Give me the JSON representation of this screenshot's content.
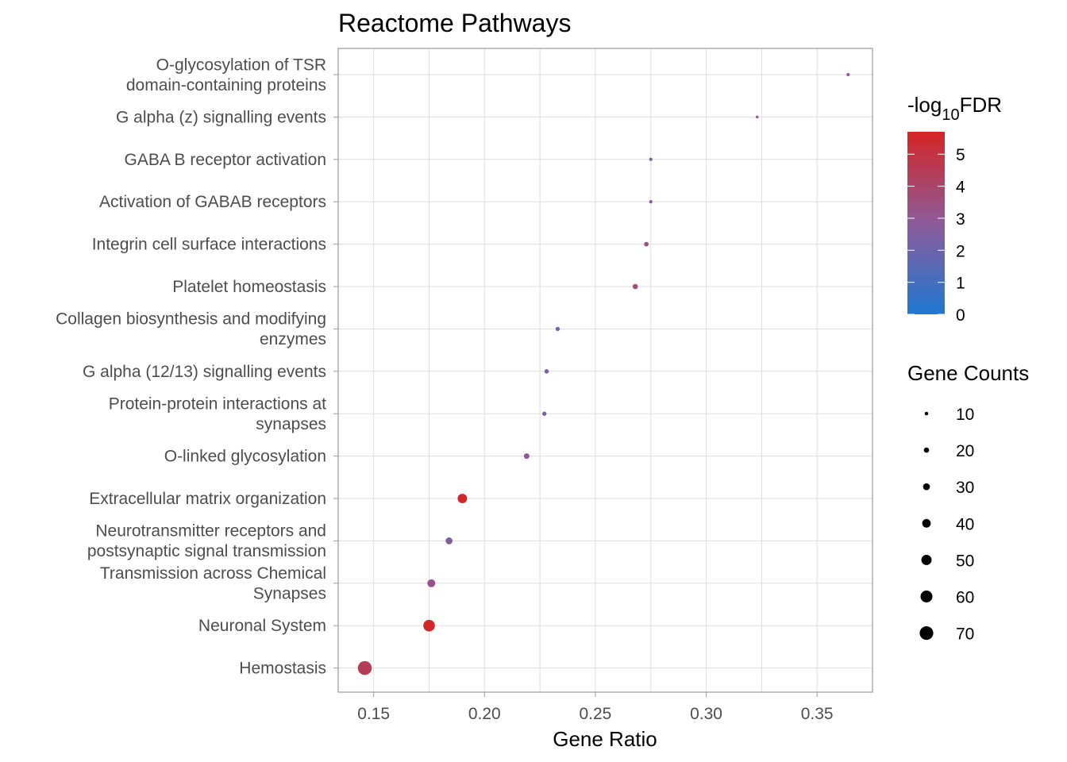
{
  "chart_data": {
    "type": "scatter",
    "title": "Reactome Pathways",
    "xlabel": "Gene Ratio",
    "ylabel": "",
    "xlim": [
      0.134,
      0.375
    ],
    "x_ticks": [
      "0.15",
      "0.20",
      "0.25",
      "0.30",
      "0.35"
    ],
    "x_tick_values": [
      0.15,
      0.2,
      0.25,
      0.3,
      0.35
    ],
    "grid": true,
    "categories": [
      [
        "O-glycosylation of TSR",
        "domain-containing proteins"
      ],
      [
        "G alpha (z) signalling events"
      ],
      [
        "GABA B receptor activation"
      ],
      [
        "Activation of GABAB receptors"
      ],
      [
        "Integrin cell surface interactions"
      ],
      [
        "Platelet homeostasis"
      ],
      [
        "Collagen biosynthesis and modifying",
        "enzymes"
      ],
      [
        "G alpha (12/13) signalling events"
      ],
      [
        "Protein-protein interactions at",
        "synapses"
      ],
      [
        "O-linked glycosylation"
      ],
      [
        "Extracellular matrix organization"
      ],
      [
        "Neurotransmitter receptors and",
        "postsynaptic signal transmission"
      ],
      [
        "Transmission across Chemical",
        "Synapses"
      ],
      [
        "Neuronal System"
      ],
      [
        "Hemostasis"
      ]
    ],
    "gene_ratio": [
      0.364,
      0.323,
      0.275,
      0.275,
      0.273,
      0.268,
      0.233,
      0.228,
      0.227,
      0.219,
      0.19,
      0.184,
      0.176,
      0.175,
      0.146
    ],
    "neg_log10_fdr": [
      3.0,
      2.8,
      2.5,
      2.5,
      3.4,
      3.6,
      2.3,
      2.4,
      2.4,
      2.9,
      5.6,
      2.5,
      3.3,
      5.6,
      4.5
    ],
    "gene_counts": [
      8,
      6,
      8,
      8,
      16,
      20,
      14,
      15,
      14,
      22,
      45,
      30,
      36,
      58,
      72
    ],
    "color_legend": {
      "title_prefix": "-log",
      "title_subscript": "10",
      "title_suffix": "FDR",
      "range": [
        0,
        5.7
      ],
      "ticks": [
        "0",
        "1",
        "2",
        "3",
        "4",
        "5"
      ],
      "tick_values": [
        0,
        1,
        2,
        3,
        4,
        5
      ],
      "low_color": "#1f78d1",
      "mid_color": "#8d5b9a",
      "high_color": "#d42525",
      "placement": "right"
    },
    "size_legend": {
      "title": "Gene Counts",
      "labels": [
        "10",
        "20",
        "30",
        "40",
        "50",
        "60",
        "70"
      ],
      "values": [
        10,
        20,
        30,
        40,
        50,
        60,
        70
      ],
      "placement": "right"
    }
  }
}
